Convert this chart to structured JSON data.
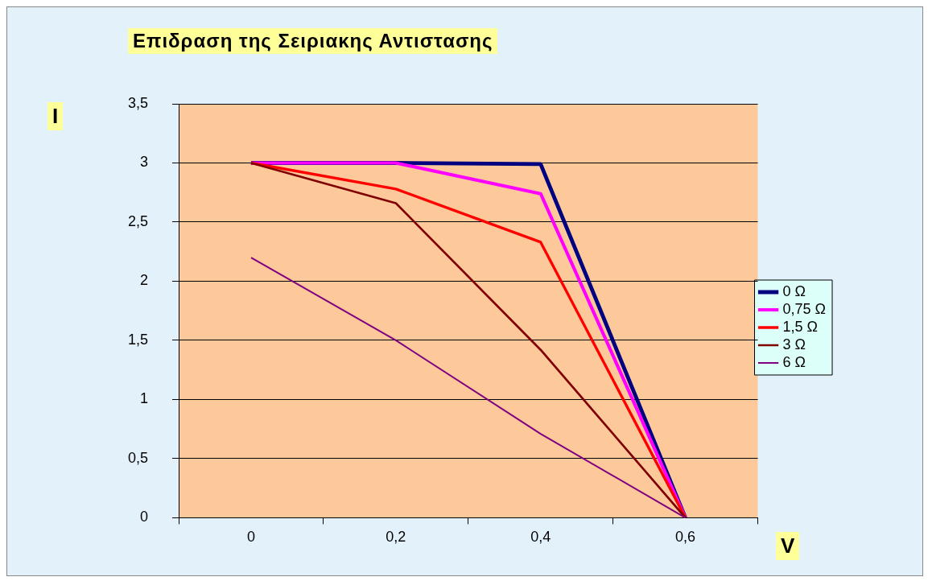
{
  "chart_data": {
    "type": "line",
    "title": "Επιδραση της Σειριακης  Αντιστασης",
    "xlabel": "V",
    "ylabel": "I",
    "categories": [
      "0",
      "0,2",
      "0,4",
      "0,6"
    ],
    "series": [
      {
        "name": "0 Ω",
        "color": "#000080",
        "values": [
          3,
          3,
          2.99,
          0
        ]
      },
      {
        "name": "0,75 Ω",
        "color": "#ff00ff",
        "values": [
          3,
          3,
          2.74,
          0
        ]
      },
      {
        "name": "1,5 Ω",
        "color": "#ff0000",
        "values": [
          3,
          2.78,
          2.33,
          0
        ]
      },
      {
        "name": "3 Ω",
        "color": "#800000",
        "values": [
          3,
          2.66,
          1.42,
          0
        ]
      },
      {
        "name": "6 Ω",
        "color": "#800080",
        "values": [
          2.2,
          1.5,
          0.71,
          0
        ]
      }
    ],
    "ylim": [
      0,
      3.5
    ],
    "yticks": [
      0,
      {
        "value": 0.5,
        "label": "0,5"
      },
      1,
      {
        "value": 1.5,
        "label": "1,5"
      },
      2,
      {
        "value": 2.5,
        "label": "2,5"
      },
      3,
      {
        "value": 3.5,
        "label": "3,5"
      }
    ],
    "grid": "y",
    "legend": "right",
    "marker": "none",
    "line_style": "solid"
  }
}
